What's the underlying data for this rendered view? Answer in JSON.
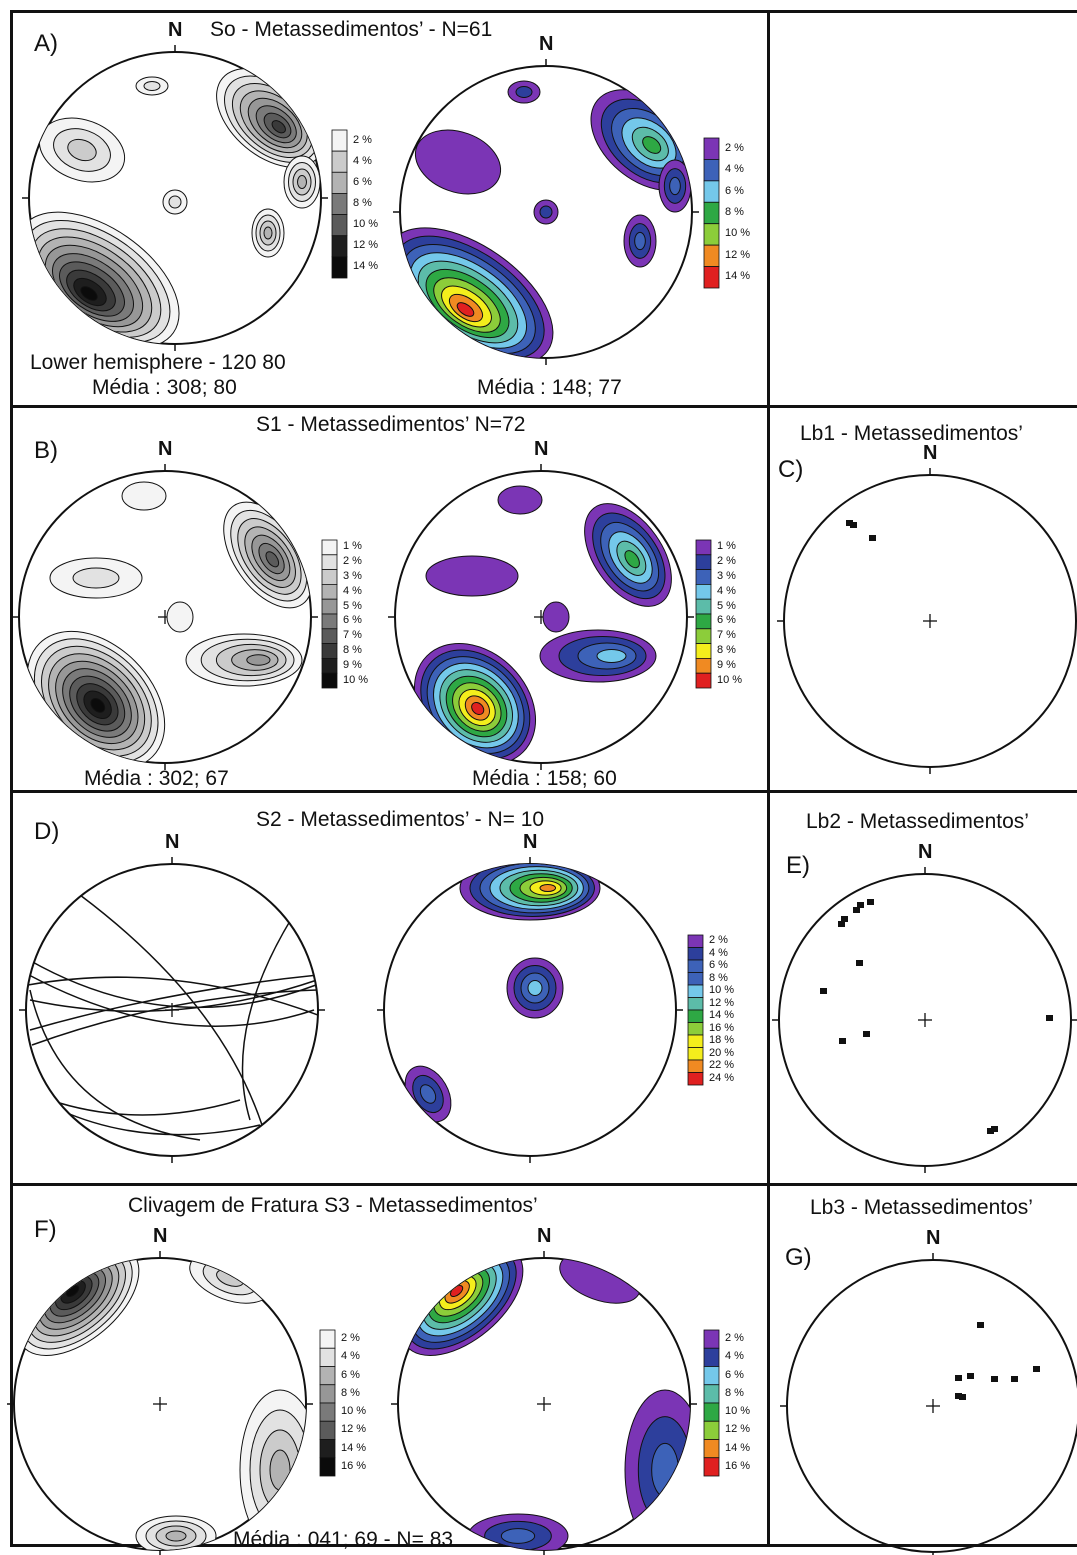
{
  "north_label": "N",
  "panels": {
    "A": {
      "letter": "A)",
      "title": "So - Metassedimentos’ - N=61",
      "note": "Lower hemisphere - 120  80",
      "mean_left": "Média : 308; 80",
      "mean_right": "Média : ​148; 77",
      "legend_gray": [
        "2 %",
        "4 %",
        "6 %",
        "8 %",
        "10 %",
        "12 %",
        "14 %"
      ],
      "legend_color": [
        "2 %",
        "4 %",
        "6 %",
        "8 %",
        "10 %",
        "12 %",
        "14 %"
      ]
    },
    "B": {
      "letter": "B)",
      "title": "S1 - Metassedimentos’ N=72",
      "mean_left": "Média : 302; 67",
      "mean_right": "Média : 158; 60",
      "legend_gray": [
        "1 %",
        "2 %",
        "3 %",
        "4 %",
        "5 %",
        "6 %",
        "7 %",
        "8 %",
        "9 %",
        "10 %"
      ],
      "legend_color": [
        "1 %",
        "2 %",
        "3 %",
        "4 %",
        "5 %",
        "6 %",
        "7 %",
        "8 %",
        "9 %",
        "10 %"
      ]
    },
    "C": {
      "letter": "C)",
      "title": "Lb1 - Metassedimentos’"
    },
    "D": {
      "letter": "D)",
      "title": "S2 - Metassedimentos’ - N= 10",
      "legend_color": [
        "2 %",
        "4 %",
        "6 %",
        "8 %",
        "10 %",
        "12 %",
        "14 %",
        "16 %",
        "18 %",
        "20 %",
        "22 %",
        "24 %"
      ]
    },
    "E": {
      "letter": "E)",
      "title": "Lb2 - Metassedimentos’"
    },
    "F": {
      "letter": "F)",
      "title": "Clivagem de Fratura S3 - Metassedimentos’",
      "mean": "Média : 041; 69 - N= 83",
      "legend_gray": [
        "2 %",
        "4 %",
        "6 %",
        "8 %",
        "10 %",
        "12 %",
        "14 %",
        "16 %"
      ],
      "legend_color": [
        "2 %",
        "4 %",
        "6 %",
        "8 %",
        "10 %",
        "12 %",
        "14 %",
        "16 %"
      ]
    },
    "G": {
      "letter": "G)",
      "title": "Lb3 - Metassedimentos’"
    }
  },
  "colors": {
    "purple": "#7b35b5",
    "blue": "#2d3f9c",
    "cyan": "#74c8ea",
    "green": "#2ea844",
    "yellow": "#f4ee1c",
    "orange": "#f08a22",
    "red": "#e02020"
  }
}
